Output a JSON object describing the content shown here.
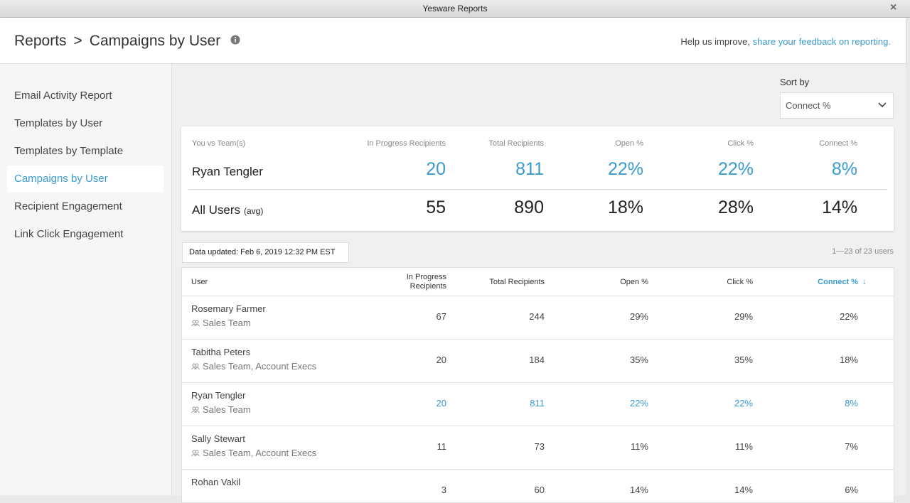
{
  "window_title": "Yesware Reports",
  "header": {
    "crumb": "Reports",
    "title": "Campaigns by User",
    "help_prefix": "Help us improve,",
    "help_link": "share your feedback on reporting."
  },
  "nav": {
    "items": [
      "Email Activity Report",
      "Templates by User",
      "Templates by Template",
      "Campaigns by User",
      "Recipient Engagement",
      "Link Click Engagement"
    ],
    "active": 3
  },
  "sort": {
    "label": "Sort by",
    "value": "Connect %"
  },
  "summary": {
    "headers": [
      "You vs Team(s)",
      "In Progress Recipients",
      "Total Recipients",
      "Open %",
      "Click %",
      "Connect %"
    ],
    "rows": [
      {
        "name": "Ryan Tengler",
        "cells": [
          "20",
          "811",
          "22%",
          "22%",
          "8%"
        ],
        "highlight": true
      },
      {
        "name": "All Users",
        "note": "(avg)",
        "cells": [
          "55",
          "890",
          "18%",
          "28%",
          "14%"
        ],
        "highlight": false
      }
    ]
  },
  "data_updated": "Data updated: Feb 6, 2019 12:32 PM EST",
  "pagination": "1—23 of 23 users",
  "table": {
    "headers": [
      "User",
      "In Progress Recipients",
      "Total Recipients",
      "Open %",
      "Click %",
      "Connect %"
    ],
    "sorted_column": 5,
    "rows": [
      {
        "name": "Rosemary Farmer",
        "team": "Sales Team",
        "cells": [
          "67",
          "244",
          "29%",
          "29%",
          "22%"
        ],
        "highlight": false
      },
      {
        "name": "Tabitha Peters",
        "team": "Sales Team, Account Execs",
        "cells": [
          "20",
          "184",
          "35%",
          "35%",
          "18%"
        ],
        "highlight": false
      },
      {
        "name": "Ryan Tengler",
        "team": "Sales Team",
        "cells": [
          "20",
          "811",
          "22%",
          "22%",
          "8%"
        ],
        "highlight": true
      },
      {
        "name": "Sally Stewart",
        "team": "Sales Team, Account Execs",
        "cells": [
          "11",
          "73",
          "11%",
          "11%",
          "7%"
        ],
        "highlight": false
      },
      {
        "name": "Rohan Vakil",
        "cells": [
          "3",
          "60",
          "14%",
          "14%",
          "6%"
        ],
        "highlight": false
      }
    ]
  }
}
